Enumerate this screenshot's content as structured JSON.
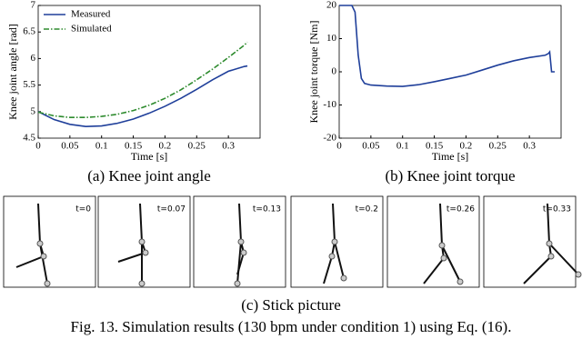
{
  "chart_data": [
    {
      "type": "line",
      "caption": "(a) Knee joint angle",
      "xlabel": "Time [s]",
      "ylabel": "Knee joint angle [rad]",
      "x": [
        0,
        0.025,
        0.05,
        0.075,
        0.1,
        0.125,
        0.15,
        0.175,
        0.2,
        0.225,
        0.25,
        0.275,
        0.3,
        0.325,
        0.33
      ],
      "series": [
        {
          "name": "Measured",
          "color": "#1f3f9a",
          "style": "solid",
          "values": [
            5.0,
            4.85,
            4.76,
            4.72,
            4.73,
            4.78,
            4.86,
            4.97,
            5.1,
            5.25,
            5.42,
            5.6,
            5.76,
            5.85,
            5.86
          ]
        },
        {
          "name": "Simulated",
          "color": "#2e8b2e",
          "style": "dash-dot",
          "values": [
            4.99,
            4.92,
            4.89,
            4.89,
            4.91,
            4.95,
            5.02,
            5.12,
            5.25,
            5.41,
            5.6,
            5.8,
            6.02,
            6.25,
            6.31
          ]
        }
      ],
      "xlim": [
        0,
        0.35
      ],
      "xticks": [
        0,
        0.05,
        0.1,
        0.15,
        0.2,
        0.25,
        0.3
      ],
      "ylim": [
        4.5,
        7
      ],
      "yticks": [
        4.5,
        5,
        5.5,
        6,
        6.5,
        7
      ],
      "legend": "upper left"
    },
    {
      "type": "line",
      "caption": "(b) Knee joint torque",
      "xlabel": "Time [s]",
      "ylabel": "Knee joint torque [Nm]",
      "x": [
        0,
        0.02,
        0.025,
        0.03,
        0.035,
        0.04,
        0.05,
        0.075,
        0.1,
        0.125,
        0.15,
        0.175,
        0.2,
        0.225,
        0.25,
        0.275,
        0.3,
        0.325,
        0.33,
        0.332,
        0.335,
        0.34
      ],
      "series": [
        {
          "color": "#1f3f9a",
          "style": "solid",
          "values": [
            20,
            20,
            18,
            5,
            -2,
            -3.5,
            -4,
            -4.3,
            -4.4,
            -3.9,
            -3,
            -2,
            -1,
            0.5,
            2,
            3.3,
            4.3,
            5,
            5.5,
            6,
            0,
            0
          ]
        }
      ],
      "xlim": [
        0,
        0.35
      ],
      "xticks": [
        0,
        0.05,
        0.1,
        0.15,
        0.2,
        0.25,
        0.3
      ],
      "ylim": [
        -20,
        20
      ],
      "yticks": [
        -20,
        -10,
        0,
        10,
        20
      ]
    }
  ],
  "stick_picture": {
    "labels": [
      "t=0",
      "t=0.07",
      "t=0.13",
      "t=0.2",
      "t=0.26",
      "t=0.33"
    ],
    "caption": "(c) Stick picture"
  },
  "figure_caption": "Fig. 13. Simulation results (130 bpm under condition 1) using Eq. (16)."
}
